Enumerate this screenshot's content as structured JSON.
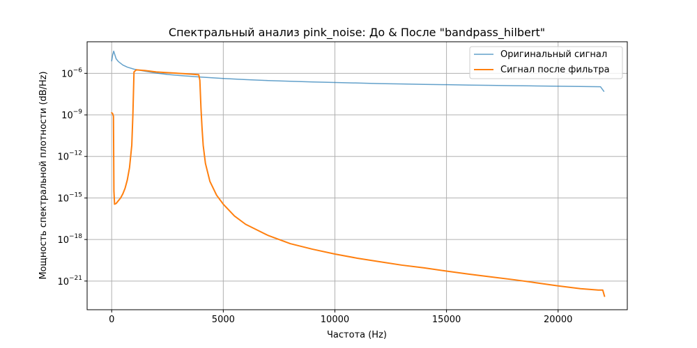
{
  "chart_data": {
    "type": "line",
    "title": "Спектральный анализ pink_noise: До & После \"bandpass_hilbert\"",
    "xlabel": "Частота (Hz)",
    "ylabel": "Мощность спектральной плотности (dB/Hz)",
    "xscale": "linear",
    "yscale": "log",
    "xlim": [
      -1100,
      23100
    ],
    "ylim_exp": [
      -23.07,
      -3.72
    ],
    "grid": true,
    "legend_position": "top-right",
    "x_ticks": [
      {
        "value": 0,
        "label": "0"
      },
      {
        "value": 5000,
        "label": "5000"
      },
      {
        "value": 10000,
        "label": "10000"
      },
      {
        "value": 15000,
        "label": "15000"
      },
      {
        "value": 20000,
        "label": "20000"
      }
    ],
    "y_ticks": [
      {
        "exp": -6,
        "base": "10",
        "sup": "−6"
      },
      {
        "exp": -9,
        "base": "10",
        "sup": "−9"
      },
      {
        "exp": -12,
        "base": "10",
        "sup": "−12"
      },
      {
        "exp": -15,
        "base": "10",
        "sup": "−15"
      },
      {
        "exp": -18,
        "base": "10",
        "sup": "−18"
      },
      {
        "exp": -21,
        "base": "10",
        "sup": "−21"
      }
    ],
    "series": [
      {
        "name": "Оригинальный сигнал",
        "color": "#1f77b4",
        "opacity": 0.7,
        "width": 1.5,
        "points_log10": [
          [
            0,
            -5.1
          ],
          [
            40,
            -4.7
          ],
          [
            90,
            -4.4
          ],
          [
            130,
            -4.6
          ],
          [
            200,
            -4.95
          ],
          [
            300,
            -5.15
          ],
          [
            500,
            -5.4
          ],
          [
            700,
            -5.55
          ],
          [
            1000,
            -5.7
          ],
          [
            1500,
            -5.85
          ],
          [
            2000,
            -5.98
          ],
          [
            2500,
            -6.08
          ],
          [
            3000,
            -6.15
          ],
          [
            4000,
            -6.27
          ],
          [
            5000,
            -6.37
          ],
          [
            6000,
            -6.45
          ],
          [
            7000,
            -6.52
          ],
          [
            8000,
            -6.57
          ],
          [
            9000,
            -6.62
          ],
          [
            10000,
            -6.66
          ],
          [
            11000,
            -6.7
          ],
          [
            12000,
            -6.74
          ],
          [
            13000,
            -6.77
          ],
          [
            14000,
            -6.8
          ],
          [
            15000,
            -6.82
          ],
          [
            16000,
            -6.85
          ],
          [
            17000,
            -6.87
          ],
          [
            18000,
            -6.89
          ],
          [
            19000,
            -6.91
          ],
          [
            20000,
            -6.93
          ],
          [
            21000,
            -6.95
          ],
          [
            21900,
            -6.97
          ],
          [
            22050,
            -7.3
          ]
        ]
      },
      {
        "name": "Сигнал после фильтра",
        "color": "#ff7f0e",
        "opacity": 1,
        "width": 2,
        "points_log10": [
          [
            0,
            -8.85
          ],
          [
            40,
            -8.9
          ],
          [
            80,
            -9.1
          ],
          [
            100,
            -14.5
          ],
          [
            130,
            -15.45
          ],
          [
            200,
            -15.4
          ],
          [
            300,
            -15.2
          ],
          [
            400,
            -15.0
          ],
          [
            500,
            -14.7
          ],
          [
            600,
            -14.3
          ],
          [
            700,
            -13.7
          ],
          [
            800,
            -12.8
          ],
          [
            900,
            -11.2
          ],
          [
            950,
            -9.0
          ],
          [
            1000,
            -5.9
          ],
          [
            1100,
            -5.75
          ],
          [
            1500,
            -5.8
          ],
          [
            2000,
            -5.9
          ],
          [
            2500,
            -5.95
          ],
          [
            3000,
            -6.0
          ],
          [
            3500,
            -6.05
          ],
          [
            3900,
            -6.1
          ],
          [
            3950,
            -6.5
          ],
          [
            4000,
            -8.5
          ],
          [
            4050,
            -10.0
          ],
          [
            4100,
            -11.2
          ],
          [
            4200,
            -12.5
          ],
          [
            4400,
            -13.8
          ],
          [
            4700,
            -14.8
          ],
          [
            5000,
            -15.45
          ],
          [
            5500,
            -16.3
          ],
          [
            6000,
            -16.9
          ],
          [
            7000,
            -17.7
          ],
          [
            8000,
            -18.3
          ],
          [
            9000,
            -18.7
          ],
          [
            10000,
            -19.05
          ],
          [
            11000,
            -19.35
          ],
          [
            12000,
            -19.6
          ],
          [
            13000,
            -19.85
          ],
          [
            14000,
            -20.05
          ],
          [
            15000,
            -20.28
          ],
          [
            16000,
            -20.5
          ],
          [
            17000,
            -20.7
          ],
          [
            18000,
            -20.9
          ],
          [
            19000,
            -21.12
          ],
          [
            20000,
            -21.35
          ],
          [
            21000,
            -21.55
          ],
          [
            21800,
            -21.65
          ],
          [
            22000,
            -21.65
          ],
          [
            22080,
            -22.1
          ]
        ]
      }
    ]
  }
}
